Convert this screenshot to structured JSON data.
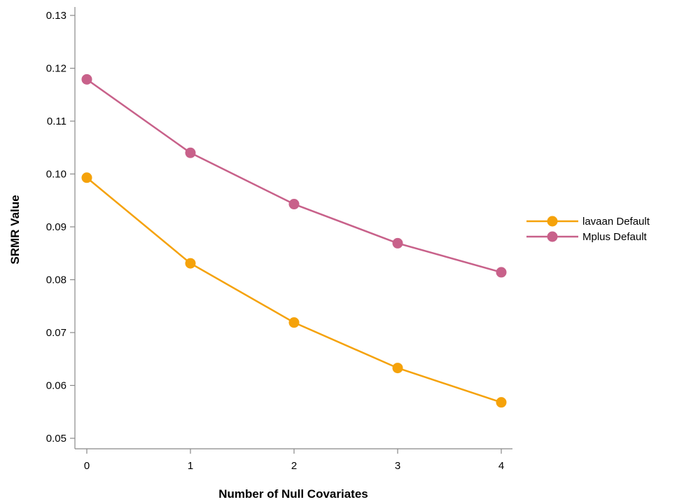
{
  "chart_data": {
    "type": "line",
    "title": "",
    "xlabel": "Number of Null Covariates",
    "ylabel": "SRMR Value",
    "x": [
      0,
      1,
      2,
      3,
      4
    ],
    "x_ticks": [
      "0",
      "1",
      "2",
      "3",
      "4"
    ],
    "y_ticks": [
      "0.05",
      "0.06",
      "0.07",
      "0.08",
      "0.09",
      "0.10",
      "0.11",
      "0.12",
      "0.13"
    ],
    "ylim": [
      0.05,
      0.13
    ],
    "grid": false,
    "legend_position": "right",
    "series": [
      {
        "name": "lavaan Default",
        "color": "#F5A20A",
        "values": [
          0.0993,
          0.0831,
          0.0719,
          0.0633,
          0.0568
        ]
      },
      {
        "name": "Mplus Default",
        "color": "#C8618A",
        "values": [
          0.1179,
          0.104,
          0.0943,
          0.0869,
          0.0814
        ]
      }
    ]
  }
}
